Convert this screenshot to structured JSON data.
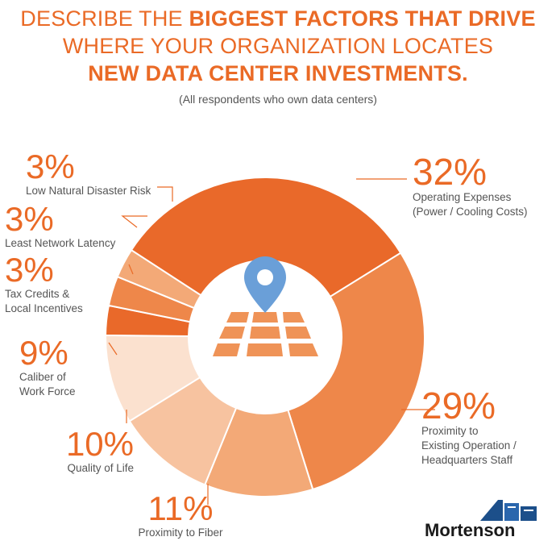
{
  "title": {
    "line1_a": "DESCRIBE THE ",
    "line1_b": "BIGGEST FACTORS THAT DRIVE",
    "line2": "WHERE YOUR ORGANIZATION LOCATES",
    "line3": "NEW DATA CENTER INVESTMENTS."
  },
  "subtitle": "(All respondents who own data centers)",
  "logo": "Mortenson",
  "colors": {
    "accent": "#ea6a26",
    "map_pin": "#6a9fd8"
  },
  "icon": "map-pin-icon",
  "chart_data": {
    "type": "pie",
    "title": "DESCRIBE THE BIGGEST FACTORS THAT DRIVE WHERE YOUR ORGANIZATION LOCATES NEW DATA CENTER INVESTMENTS.",
    "subtitle": "(All respondents who own data centers)",
    "slices": [
      {
        "label": "Operating Expenses (Power / Cooling Costs)",
        "value": 32,
        "pct_label": "32%",
        "lines": [
          "Operating Expenses",
          "(Power / Cooling Costs)"
        ],
        "color": "#e9692a"
      },
      {
        "label": "Proximity to Existing Operation / Headquarters Staff",
        "value": 29,
        "pct_label": "29%",
        "lines": [
          "Proximity to",
          "Existing Operation /",
          "Headquarters Staff"
        ],
        "color": "#ee874a"
      },
      {
        "label": "Proximity to Fiber",
        "value": 11,
        "pct_label": "11%",
        "lines": [
          "Proximity to Fiber"
        ],
        "color": "#f3a977"
      },
      {
        "label": "Quality of Life",
        "value": 10,
        "pct_label": "10%",
        "lines": [
          "Quality of Life"
        ],
        "color": "#f7c3a0"
      },
      {
        "label": "Caliber of Work Force",
        "value": 9,
        "pct_label": "9%",
        "lines": [
          "Caliber of",
          "Work Force"
        ],
        "color": "#fbe1cf"
      },
      {
        "label": "Tax Credits & Local Incentives",
        "value": 3,
        "pct_label": "3%",
        "lines": [
          "Tax Credits &",
          "Local Incentives"
        ],
        "color": "#e9692a"
      },
      {
        "label": "Least Network Latency",
        "value": 3,
        "pct_label": "3%",
        "lines": [
          "Least Network Latency"
        ],
        "color": "#ee874a"
      },
      {
        "label": "Low Natural Disaster Risk",
        "value": 3,
        "pct_label": "3%",
        "lines": [
          "Low Natural Disaster Risk"
        ],
        "color": "#f3a977"
      }
    ]
  }
}
